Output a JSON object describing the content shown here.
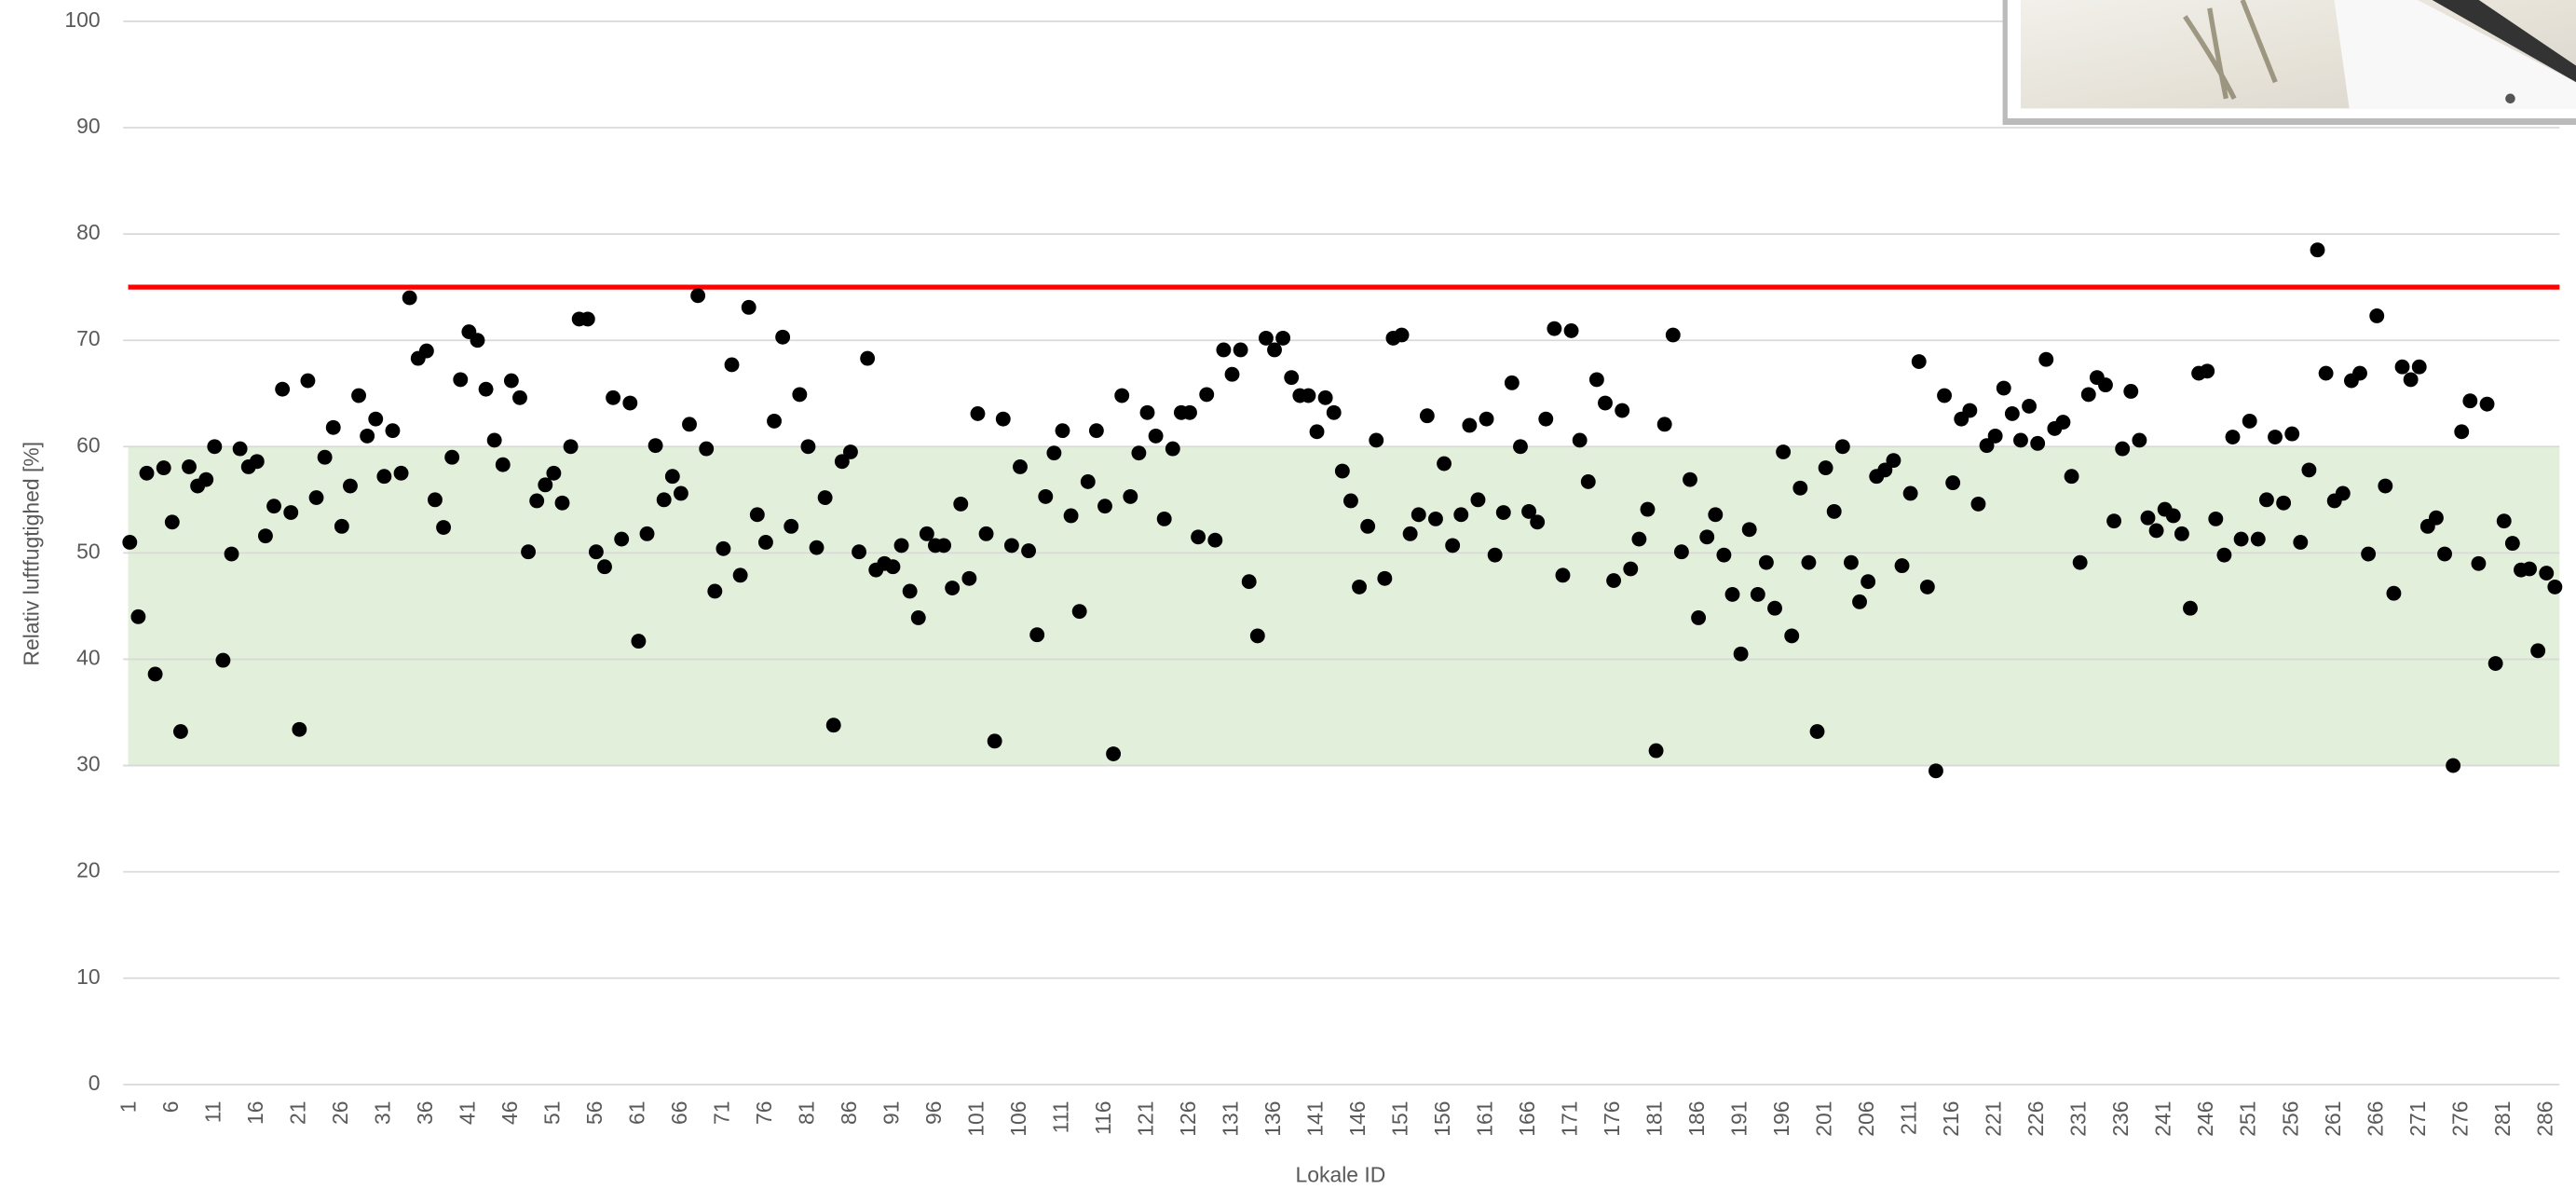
{
  "chart_data": {
    "type": "scatter",
    "y_label": "Relativ luftfugtighed [%]",
    "x_label": "Lokale ID",
    "color": "#000000",
    "threshold": 75,
    "threshold_color": "#ff0000",
    "band": [
      30,
      60
    ],
    "band_color": "#e2efda",
    "ylim": [
      0,
      100
    ],
    "yticks": [
      0,
      10,
      20,
      30,
      40,
      50,
      60,
      70,
      80,
      90,
      100
    ],
    "grid": true,
    "categories": [
      "1",
      null,
      null,
      null,
      null,
      "6",
      null,
      null,
      null,
      null,
      "11",
      null,
      null,
      null,
      null,
      "16",
      null,
      null,
      null,
      null,
      "21",
      null,
      null,
      null,
      null,
      "26",
      null,
      null,
      null,
      null,
      "31",
      null,
      null,
      null,
      null,
      "36",
      null,
      null,
      null,
      null,
      "41",
      null,
      null,
      null,
      null,
      "46",
      null,
      null,
      null,
      null,
      "51",
      null,
      null,
      null,
      null,
      "56",
      null,
      null,
      null,
      null,
      "61",
      null,
      null,
      null,
      null,
      "66",
      null,
      null,
      null,
      null,
      "71",
      null,
      null,
      null,
      null,
      "76",
      null,
      null,
      null,
      null,
      "81",
      null,
      null,
      null,
      null,
      "86",
      null,
      null,
      null,
      null,
      "91",
      null,
      null,
      null,
      null,
      "96",
      null,
      null,
      null,
      null,
      "101",
      null,
      null,
      null,
      null,
      "106",
      null,
      null,
      null,
      null,
      "111",
      null,
      null,
      null,
      null,
      "116",
      null,
      null,
      null,
      null,
      "121",
      null,
      null,
      null,
      null,
      "126",
      null,
      null,
      null,
      null,
      "131",
      null,
      null,
      null,
      null,
      "136",
      null,
      null,
      null,
      null,
      "141",
      null,
      null,
      null,
      null,
      "146",
      null,
      null,
      null,
      null,
      "151",
      null,
      null,
      null,
      null,
      "156",
      null,
      null,
      null,
      null,
      "161",
      null,
      null,
      null,
      null,
      "166",
      null,
      null,
      null,
      null,
      "171",
      null,
      null,
      null,
      null,
      "176",
      null,
      null,
      null,
      null,
      "181",
      null,
      null,
      null,
      null,
      "186",
      null,
      null,
      null,
      null,
      "191",
      null,
      null,
      null,
      null,
      "196",
      null,
      null,
      null,
      null,
      "201",
      null,
      null,
      null,
      null,
      "206",
      null,
      null,
      null,
      null,
      "211",
      null,
      null,
      null,
      null,
      "216",
      null,
      null,
      null,
      null,
      "221",
      null,
      null,
      null,
      null,
      "226",
      null,
      null,
      null,
      null,
      "231",
      null,
      null,
      null,
      null,
      "236",
      null,
      null,
      null,
      null,
      "241",
      null,
      null,
      null,
      null,
      "246",
      null,
      null,
      null,
      null,
      "251",
      null,
      null,
      null,
      null,
      "256",
      null,
      null,
      null,
      null,
      "261",
      null,
      null,
      null,
      null,
      "266",
      null,
      null,
      null,
      null,
      "271",
      null,
      null,
      null,
      null,
      "276",
      null,
      null,
      null,
      null,
      "281",
      null,
      null,
      null,
      null,
      "286",
      null
    ],
    "values": [
      51,
      44,
      57.5,
      38.6,
      58,
      52.9,
      33.2,
      58.1,
      56.3,
      56.9,
      60,
      39.9,
      49.9,
      59.8,
      58.1,
      58.6,
      51.6,
      54.4,
      65.4,
      53.8,
      33.4,
      66.2,
      55.2,
      59,
      61.8,
      52.5,
      56.3,
      64.8,
      61,
      62.6,
      57.2,
      61.5,
      57.5,
      74,
      68.3,
      69,
      55,
      52.4,
      59,
      66.3,
      70.8,
      70,
      65.4,
      60.6,
      58.3,
      66.2,
      64.6,
      50.1,
      54.9,
      56.4,
      57.5,
      54.7,
      60,
      72,
      72,
      50.1,
      48.7,
      64.6,
      51.3,
      64.1,
      41.7,
      51.8,
      60.1,
      55,
      57.2,
      55.6,
      62.1,
      74.2,
      59.8,
      46.4,
      50.4,
      67.7,
      47.9,
      73.1,
      53.6,
      51,
      62.4,
      70.3,
      52.5,
      64.9,
      60,
      50.5,
      55.2,
      33.8,
      58.6,
      59.5,
      50.1,
      68.3,
      48.4,
      49,
      48.7,
      50.7,
      46.4,
      43.9,
      51.8,
      50.7,
      50.7,
      46.7,
      54.6,
      47.6,
      63.1,
      51.8,
      32.3,
      62.6,
      50.7,
      58.1,
      50.2,
      42.3,
      55.3,
      59.4,
      61.5,
      53.5,
      44.5,
      56.7,
      61.5,
      54.4,
      31.1,
      64.8,
      55.3,
      59.4,
      63.2,
      61,
      53.2,
      59.8,
      63.2,
      63.2,
      51.5,
      64.9,
      51.2,
      69.1,
      66.8,
      69.1,
      47.3,
      42.2,
      70.2,
      69.1,
      70.2,
      66.5,
      64.8,
      64.8,
      61.4,
      64.6,
      63.2,
      57.7,
      54.9,
      46.8,
      52.5,
      60.6,
      47.6,
      70.2,
      70.5,
      51.8,
      53.6,
      62.9,
      53.2,
      58.4,
      50.7,
      53.6,
      62,
      55,
      62.6,
      49.8,
      53.8,
      66,
      60,
      53.9,
      52.9,
      62.6,
      71.1,
      47.9,
      70.9,
      60.6,
      56.7,
      66.3,
      64.1,
      47.4,
      63.4,
      48.5,
      51.3,
      54.1,
      31.4,
      62.1,
      70.5,
      50.1,
      56.9,
      43.9,
      51.5,
      53.6,
      49.8,
      46.1,
      40.5,
      52.2,
      46.1,
      49.1,
      44.8,
      59.5,
      42.2,
      56.1,
      49.1,
      33.2,
      58,
      53.9,
      60,
      49.1,
      45.4,
      47.3,
      57.2,
      57.8,
      58.7,
      48.8,
      55.6,
      68,
      46.8,
      29.5,
      64.8,
      56.6,
      62.6,
      63.4,
      54.6,
      60.1,
      61,
      65.5,
      63.1,
      60.6,
      63.8,
      60.3,
      68.2,
      61.7,
      62.3,
      57.2,
      49.1,
      64.9,
      66.5,
      65.8,
      53,
      59.8,
      65.2,
      60.6,
      53.3,
      52.1,
      54.1,
      53.5,
      51.8,
      44.8,
      66.9,
      67.1,
      53.2,
      49.8,
      60.9,
      51.3,
      62.4,
      51.3,
      55,
      60.9,
      54.7,
      61.2,
      51,
      57.8,
      78.5,
      66.9,
      54.9,
      55.6,
      66.2,
      66.9,
      49.9,
      72.3,
      56.3,
      46.2,
      67.5,
      66.3,
      67.5,
      52.5,
      53.3,
      49.9,
      30,
      61.4,
      64.3,
      49,
      64,
      39.6,
      53,
      50.9,
      48.4,
      48.5,
      40.8,
      48.1,
      46.8
    ]
  }
}
